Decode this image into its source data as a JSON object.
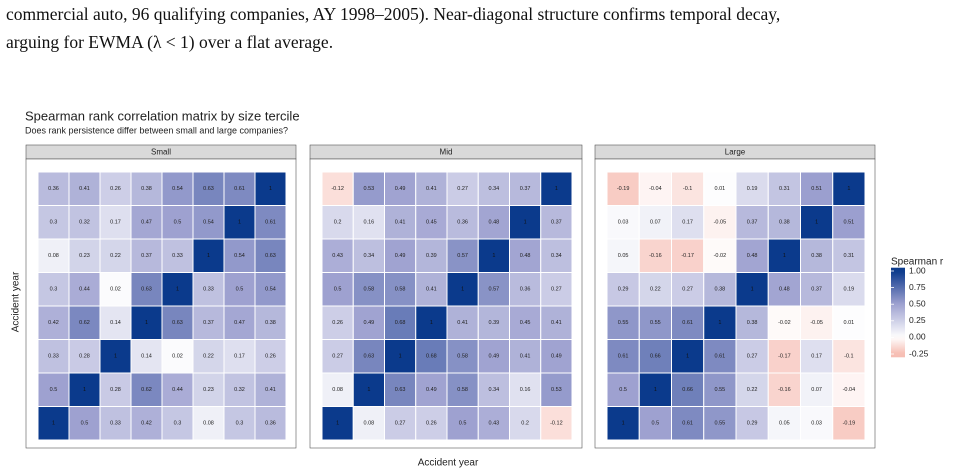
{
  "document": {
    "caption": [
      "commercial auto, 96 qualifying companies, AY 1998–2005). Near-diagonal structure confirms temporal decay,",
      "arguing for EWMA (λ < 1) over a flat average."
    ]
  },
  "chart_data": {
    "type": "heatmap",
    "title": "Spearman rank correlation matrix by size tercile",
    "subtitle": "Does rank persistence differ between small and large companies?",
    "xlabel": "Accident year",
    "ylabel": "Accident year",
    "legend_title": "Spearman r",
    "legend_ticks": [
      {
        "value": 1,
        "label": "1.00"
      },
      {
        "value": 0.75,
        "label": "0.75"
      },
      {
        "value": 0.5,
        "label": "0.50"
      },
      {
        "value": 0.25,
        "label": "0.25"
      },
      {
        "value": 0,
        "label": "0.00"
      },
      -0.25
    ],
    "color_stops": [
      [
        -0.25,
        "#f6bcb2"
      ],
      [
        0,
        "#ffffff"
      ],
      [
        0.5,
        "#9ea1d0"
      ],
      [
        1,
        "#0b3a8c"
      ]
    ],
    "facets": [
      {
        "name": "Small",
        "values": [
          [
            0.36,
            0.41,
            0.26,
            0.38,
            0.54,
            0.63,
            0.61,
            1
          ],
          [
            0.3,
            0.32,
            0.17,
            0.47,
            0.5,
            0.54,
            1,
            0.61
          ],
          [
            0.08,
            0.23,
            0.22,
            0.37,
            0.33,
            1,
            0.54,
            0.63
          ],
          [
            0.3,
            0.44,
            0.02,
            0.63,
            1,
            0.33,
            0.5,
            0.54
          ],
          [
            0.42,
            0.62,
            0.14,
            1,
            0.63,
            0.37,
            0.47,
            0.38
          ],
          [
            0.33,
            0.28,
            1,
            0.14,
            0.02,
            0.22,
            0.17,
            0.26
          ],
          [
            0.5,
            1,
            0.28,
            0.62,
            0.44,
            0.23,
            0.32,
            0.41
          ],
          [
            1,
            0.5,
            0.33,
            0.42,
            0.3,
            0.08,
            0.3,
            0.36
          ]
        ]
      },
      {
        "name": "Mid",
        "values": [
          [
            -0.12,
            0.53,
            0.49,
            0.41,
            0.27,
            0.34,
            0.37,
            1
          ],
          [
            0.2,
            0.16,
            0.41,
            0.45,
            0.36,
            0.48,
            1,
            0.37
          ],
          [
            0.43,
            0.34,
            0.49,
            0.39,
            0.57,
            1,
            0.48,
            0.34
          ],
          [
            0.5,
            0.58,
            0.58,
            0.41,
            1,
            0.57,
            0.36,
            0.27
          ],
          [
            0.26,
            0.49,
            0.68,
            1,
            0.41,
            0.39,
            0.45,
            0.41
          ],
          [
            0.27,
            0.63,
            1,
            0.68,
            0.58,
            0.49,
            0.41,
            0.49
          ],
          [
            0.08,
            1,
            0.63,
            0.49,
            0.58,
            0.34,
            0.16,
            0.53
          ],
          [
            1,
            0.08,
            0.27,
            0.26,
            0.5,
            0.43,
            0.2,
            -0.12
          ]
        ]
      },
      {
        "name": "Large",
        "values": [
          [
            -0.19,
            -0.04,
            -0.1,
            0.01,
            0.19,
            0.31,
            0.51,
            1
          ],
          [
            0.03,
            0.07,
            0.17,
            -0.05,
            0.37,
            0.38,
            1,
            0.51
          ],
          [
            0.05,
            -0.16,
            -0.17,
            -0.02,
            0.48,
            1,
            0.38,
            0.31
          ],
          [
            0.29,
            0.22,
            0.27,
            0.38,
            1,
            0.48,
            0.37,
            0.19
          ],
          [
            0.55,
            0.55,
            0.61,
            1,
            0.38,
            -0.02,
            -0.05,
            0.01
          ],
          [
            0.61,
            0.66,
            1,
            0.61,
            0.27,
            -0.17,
            0.17,
            -0.1
          ],
          [
            0.5,
            1,
            0.66,
            0.55,
            0.22,
            -0.16,
            0.07,
            -0.04
          ],
          [
            1,
            0.5,
            0.61,
            0.55,
            0.29,
            0.05,
            0.03,
            -0.19
          ]
        ]
      }
    ]
  }
}
